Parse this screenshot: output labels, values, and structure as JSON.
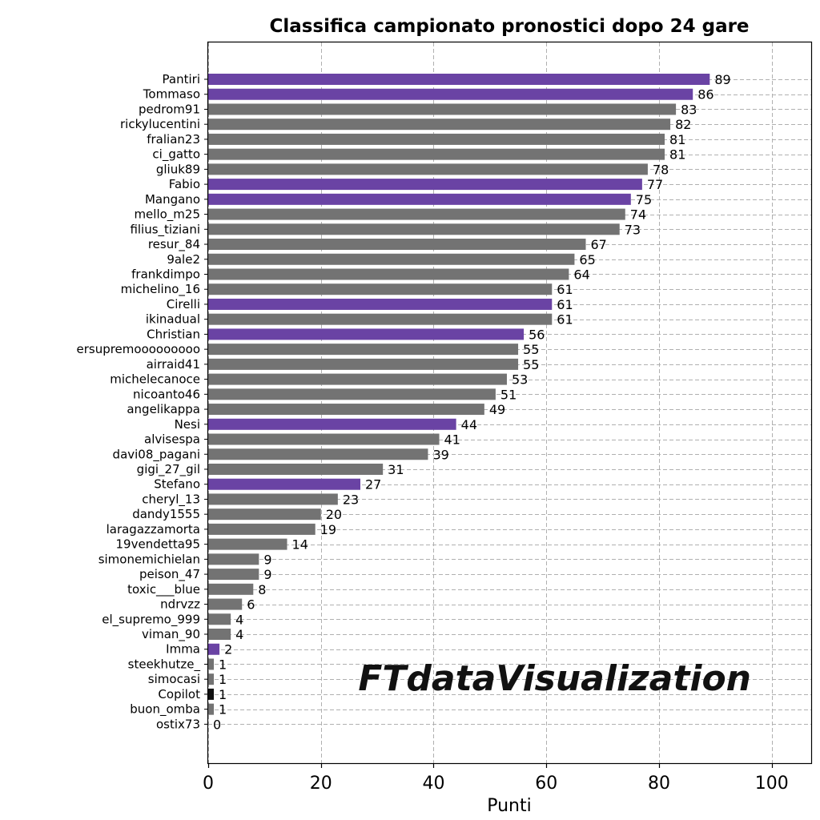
{
  "chart_data": {
    "type": "bar",
    "orientation": "horizontal",
    "title": "Classifica campionato pronostici dopo 24 gare",
    "xlabel": "Punti",
    "ylabel": "",
    "xlim": [
      0,
      107
    ],
    "xticks": [
      0,
      20,
      40,
      60,
      80,
      100
    ],
    "grid": true,
    "watermark": "FTdataVisualization",
    "colors": {
      "highlight": "#6a43a4",
      "default": "#737373",
      "special": "#111111"
    },
    "categories": [
      "Pantiri",
      "Tommaso",
      "pedrom91",
      "rickylucentini",
      "fralian23",
      "ci_gatto",
      "gliuk89",
      "Fabio",
      "Mangano",
      "mello_m25",
      "filius_tiziani",
      "resur_84",
      "9ale2",
      "frankdimpo",
      "michelino_16",
      "Cirelli",
      "ikinadual",
      "Christian",
      "ersupremooooooooo",
      "airraid41",
      "michelecanoce",
      "nicoanto46",
      "angelikappa",
      "Nesi",
      "alvisespa",
      "davi08_pagani",
      "gigi_27_gil",
      "Stefano",
      "cheryl_13",
      "dandy1555",
      "laragazzamorta",
      "19vendetta95",
      "simonemichielan",
      "peison_47",
      "toxic___blue",
      "ndrvzz",
      "el_supremo_999",
      "viman_90",
      "Imma",
      "steekhutze_",
      "simocasi",
      "Copilot",
      "buon_omba",
      "ostix73"
    ],
    "values": [
      89,
      86,
      83,
      82,
      81,
      81,
      78,
      77,
      75,
      74,
      73,
      67,
      65,
      64,
      61,
      61,
      61,
      56,
      55,
      55,
      53,
      51,
      49,
      44,
      41,
      39,
      31,
      27,
      23,
      20,
      19,
      14,
      9,
      9,
      8,
      6,
      4,
      4,
      2,
      1,
      1,
      1,
      1,
      0
    ],
    "bar_colors": [
      "highlight",
      "highlight",
      "default",
      "default",
      "default",
      "default",
      "default",
      "highlight",
      "highlight",
      "default",
      "default",
      "default",
      "default",
      "default",
      "default",
      "highlight",
      "default",
      "highlight",
      "default",
      "default",
      "default",
      "default",
      "default",
      "highlight",
      "default",
      "default",
      "default",
      "highlight",
      "default",
      "default",
      "default",
      "default",
      "default",
      "default",
      "default",
      "default",
      "default",
      "default",
      "highlight",
      "default",
      "default",
      "special",
      "default",
      "default"
    ]
  }
}
